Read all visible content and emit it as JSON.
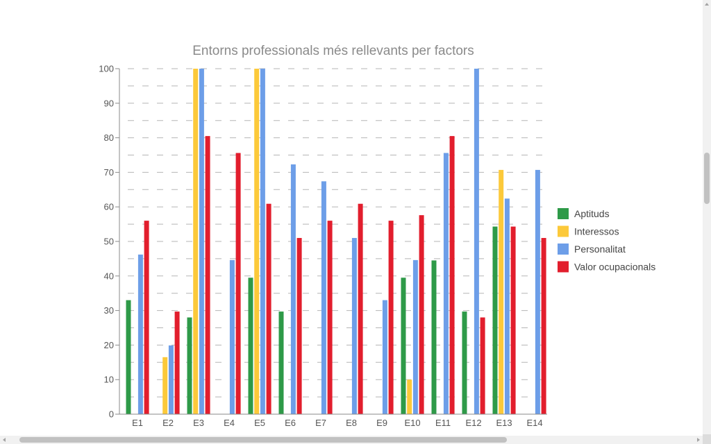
{
  "chart_data": {
    "type": "bar",
    "title": "Entorns professionals més rellevants per factors",
    "categories": [
      "E1",
      "E2",
      "E3",
      "E4",
      "E5",
      "E6",
      "E7",
      "E8",
      "E9",
      "E10",
      "E11",
      "E12",
      "E13",
      "E14"
    ],
    "series": [
      {
        "name": "Aptituds",
        "color": "#2e9a48",
        "values": [
          33,
          0,
          28,
          0,
          39.5,
          29.7,
          0,
          0,
          0,
          39.5,
          44.5,
          29.7,
          54.3,
          0
        ]
      },
      {
        "name": "Interessos",
        "color": "#fcc93a",
        "values": [
          0,
          16.5,
          100,
          0,
          100,
          0,
          0,
          0,
          0,
          10,
          0,
          0,
          70.7,
          0
        ]
      },
      {
        "name": "Personalitat",
        "color": "#6d9ee8",
        "values": [
          46.2,
          19.9,
          100,
          44.6,
          100,
          72.3,
          67.4,
          51,
          33,
          44.6,
          75.6,
          100,
          62.4,
          70.7
        ]
      },
      {
        "name": "Valor ocupacionals",
        "color": "#e21e2d",
        "values": [
          56,
          29.7,
          80.5,
          75.6,
          60.9,
          51,
          56,
          60.9,
          56,
          57.6,
          80.5,
          28,
          54.3,
          51
        ]
      }
    ],
    "ylim": [
      0,
      100
    ],
    "yticks": [
      "0",
      "10",
      "20",
      "30",
      "40",
      "50",
      "60",
      "70",
      "80",
      "90",
      "100"
    ],
    "grid": true,
    "legend_position": "right",
    "xlabel": "",
    "ylabel": ""
  }
}
